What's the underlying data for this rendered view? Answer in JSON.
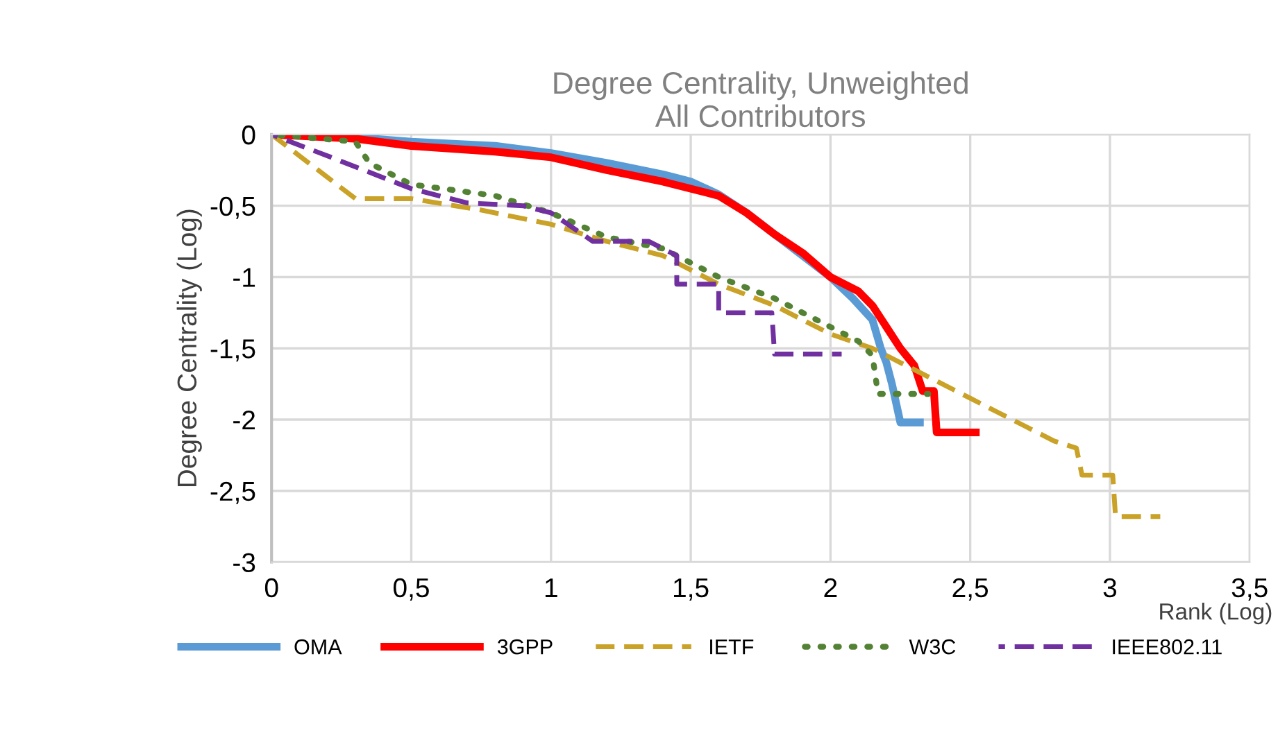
{
  "chart_data": {
    "type": "line",
    "title": "Degree Centrality, Unweighted\nAll Contributors",
    "xlabel": "Rank (Log)",
    "ylabel": "Degree Centrality (Log)",
    "xlim": [
      0,
      3.5
    ],
    "ylim": [
      -3,
      0
    ],
    "xticks": [
      0,
      {
        "value": 0.5,
        "label": "0,5"
      },
      1,
      {
        "value": 1.5,
        "label": "1,5"
      },
      2,
      {
        "value": 2.5,
        "label": "2,5"
      },
      3,
      {
        "value": 3.5,
        "label": "3,5"
      }
    ],
    "yticks": [
      0,
      {
        "value": -0.5,
        "label": "-0,5"
      },
      -1,
      {
        "value": -1.5,
        "label": "-1,5"
      },
      -2,
      {
        "value": -2.5,
        "label": "-2,5"
      },
      -3
    ],
    "grid": true,
    "legend": "bottom",
    "marker": "none",
    "series": [
      {
        "name": "OMA",
        "color": "#5b9bd5",
        "line_style": "solid",
        "x": [
          0,
          0.3,
          0.5,
          0.8,
          1.0,
          1.2,
          1.4,
          1.5,
          1.6,
          1.7,
          1.8,
          1.9,
          2.0,
          2.08,
          2.15,
          2.18,
          2.2,
          2.22,
          2.25,
          2.32
        ],
        "values": [
          0,
          -0.02,
          -0.05,
          -0.08,
          -0.13,
          -0.2,
          -0.28,
          -0.33,
          -0.42,
          -0.55,
          -0.7,
          -0.85,
          -1.0,
          -1.15,
          -1.3,
          -1.5,
          -1.6,
          -1.75,
          -2.02,
          -2.02
        ]
      },
      {
        "name": "3GPP",
        "color": "#ff0000",
        "line_style": "solid",
        "x": [
          0,
          0.3,
          0.5,
          0.8,
          1.0,
          1.2,
          1.4,
          1.6,
          1.7,
          1.8,
          1.9,
          2.0,
          2.1,
          2.15,
          2.2,
          2.25,
          2.3,
          2.33,
          2.37,
          2.38,
          2.52
        ],
        "values": [
          0,
          -0.03,
          -0.08,
          -0.12,
          -0.16,
          -0.25,
          -0.33,
          -0.43,
          -0.55,
          -0.7,
          -0.83,
          -1.0,
          -1.1,
          -1.2,
          -1.35,
          -1.5,
          -1.62,
          -1.8,
          -1.8,
          -2.09,
          -2.09
        ]
      },
      {
        "name": "IETF",
        "color": "#c9a227",
        "line_style": "dashed",
        "x": [
          0,
          0.3,
          0.5,
          0.75,
          1.0,
          1.2,
          1.4,
          1.6,
          1.8,
          2.0,
          2.15,
          2.25,
          2.35,
          2.5,
          2.6,
          2.7,
          2.8,
          2.88,
          2.9,
          3.01,
          3.02,
          3.18
        ],
        "values": [
          0,
          -0.45,
          -0.45,
          -0.53,
          -0.63,
          -0.75,
          -0.85,
          -1.05,
          -1.2,
          -1.4,
          -1.5,
          -1.6,
          -1.7,
          -1.85,
          -1.95,
          -2.05,
          -2.15,
          -2.2,
          -2.39,
          -2.39,
          -2.68,
          -2.68
        ]
      },
      {
        "name": "W3C",
        "color": "#548235",
        "line_style": "dotted",
        "x": [
          0,
          0.3,
          0.35,
          0.5,
          0.8,
          1.0,
          1.2,
          1.4,
          1.6,
          1.8,
          2.0,
          2.1,
          2.15,
          2.17,
          2.35
        ],
        "values": [
          0,
          -0.05,
          -0.2,
          -0.35,
          -0.43,
          -0.55,
          -0.72,
          -0.8,
          -1.0,
          -1.15,
          -1.35,
          -1.45,
          -1.55,
          -1.82,
          -1.82
        ]
      },
      {
        "name": "IEEE802.11",
        "color": "#7030a0",
        "line_style": "dashed",
        "x": [
          0,
          0.2,
          0.5,
          0.7,
          0.9,
          1.0,
          1.15,
          1.35,
          1.45,
          1.45,
          1.6,
          1.6,
          1.79,
          1.8,
          2.04
        ],
        "values": [
          0,
          -0.15,
          -0.38,
          -0.48,
          -0.5,
          -0.55,
          -0.75,
          -0.75,
          -0.85,
          -1.05,
          -1.05,
          -1.25,
          -1.25,
          -1.54,
          -1.54
        ]
      }
    ]
  }
}
